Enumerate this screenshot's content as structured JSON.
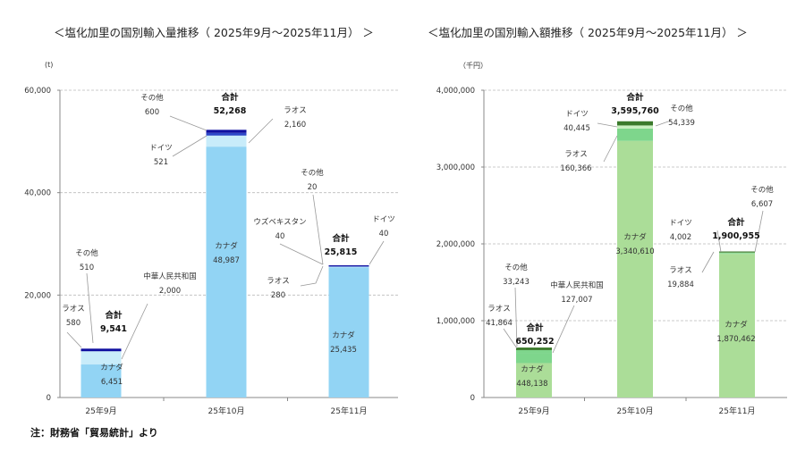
{
  "titles": {
    "left": "＜塩化加里の国別輸入量推移（ 2025年9月～2025年11月） ＞",
    "right": "＜塩化加里の国別輸入額推移（ 2025年9月～2025年11月） ＞"
  },
  "note": "注：財務省「貿易統計」より",
  "chart_data": [
    {
      "type": "bar",
      "stacked": true,
      "title": "＜塩化加里の国別輸入量推移（ 2025年9月～2025年11月） ＞",
      "ylabel": "(t)",
      "ylim": [
        0,
        60000
      ],
      "yticks": [
        "0",
        "20,000",
        "40,000",
        "60,000"
      ],
      "ytick_values": [
        0,
        20000,
        40000,
        60000
      ],
      "grid": true,
      "categories": [
        "25年9月",
        "25年10月",
        "25年11月"
      ],
      "total_label": "合計",
      "totals": [
        "9,541",
        "52,268",
        "25,815"
      ],
      "series": [
        {
          "name": "カナダ",
          "values": [
            6451,
            48987,
            25435
          ],
          "labels": [
            "6,451",
            "48,987",
            "25,435"
          ],
          "color": "#92d4f4"
        },
        {
          "name": "中華人民共和国",
          "values": [
            2000,
            null,
            null
          ],
          "labels": [
            "2,000",
            null,
            null
          ],
          "color": "#c8ecfa"
        },
        {
          "name": "ラオス",
          "values": [
            580,
            2160,
            280
          ],
          "labels": [
            "580",
            "2,160",
            "280"
          ],
          "color": "#c8ecfa"
        },
        {
          "name": "ウズベキスタン",
          "values": [
            null,
            null,
            40
          ],
          "labels": [
            null,
            null,
            "40"
          ],
          "color": "#5b7fd6"
        },
        {
          "name": "ドイツ",
          "values": [
            null,
            521,
            40
          ],
          "labels": [
            null,
            "521",
            "40"
          ],
          "color": "#2c47c8"
        },
        {
          "name": "その他",
          "values": [
            510,
            600,
            20
          ],
          "labels": [
            "510",
            "600",
            "20"
          ],
          "color": "#1010a0"
        }
      ]
    },
    {
      "type": "bar",
      "stacked": true,
      "title": "＜塩化加里の国別輸入額推移（ 2025年9月～2025年11月） ＞",
      "ylabel": "（千円）",
      "ylim": [
        0,
        4000000
      ],
      "yticks": [
        "0",
        "1,000,000",
        "2,000,000",
        "3,000,000",
        "4,000,000"
      ],
      "ytick_values": [
        0,
        1000000,
        2000000,
        3000000,
        4000000
      ],
      "grid": true,
      "categories": [
        "25年9月",
        "25年10月",
        "25年11月"
      ],
      "total_label": "合計",
      "totals": [
        "650,252",
        "3,595,760",
        "1,900,955"
      ],
      "series": [
        {
          "name": "カナダ",
          "values": [
            448138,
            3340610,
            1870462
          ],
          "labels": [
            "448,138",
            "3,340,610",
            "1,870,462"
          ],
          "color": "#abdd98"
        },
        {
          "name": "中華人民共和国",
          "values": [
            127007,
            null,
            null
          ],
          "labels": [
            "127,007",
            null,
            null
          ],
          "color": "#7ed68c"
        },
        {
          "name": "ラオス",
          "values": [
            41864,
            160366,
            19884
          ],
          "labels": [
            "41,864",
            "160,366",
            "19,884"
          ],
          "color": "#7ed68c"
        },
        {
          "name": "ドイツ",
          "values": [
            null,
            40445,
            4002
          ],
          "labels": [
            null,
            "40,445",
            "4,002"
          ],
          "color": "#c9efc0"
        },
        {
          "name": "その他",
          "values": [
            33243,
            54339,
            6607
          ],
          "labels": [
            "33,243",
            "54,339",
            "6,607"
          ],
          "color": "#3b7a2c"
        }
      ]
    }
  ]
}
